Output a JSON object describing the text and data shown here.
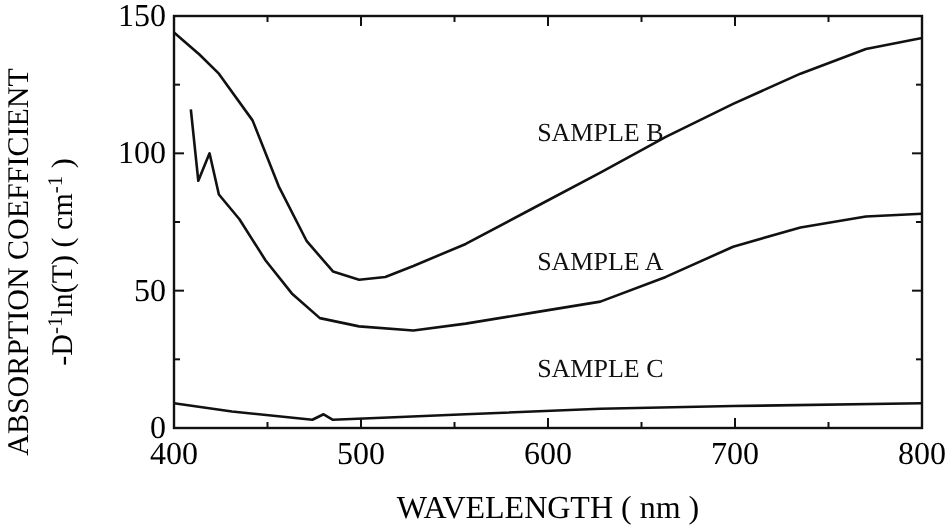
{
  "chart_data": {
    "type": "line",
    "xlabel": "WAVELENGTH ( nm )",
    "ylabel": "ABSORPTION COEFFICIENT\n-D$^{-1}$ln(T) ( cm$^{-1}$ )",
    "xlim": [
      400,
      800
    ],
    "xticks": [
      400,
      {
        "value": 450,
        "label": null
      },
      500,
      {
        "value": 550,
        "label": null
      },
      600,
      {
        "value": 650,
        "label": null
      },
      700,
      {
        "value": 750,
        "label": null
      },
      800
    ],
    "ylim": [
      0,
      150
    ],
    "yticks": [
      0,
      {
        "value": 25,
        "label": null
      },
      50,
      {
        "value": 75,
        "label": null
      },
      100,
      {
        "value": 125,
        "label": null
      },
      150
    ],
    "grid": false,
    "marker": "none",
    "line_style": "solid",
    "series": [
      {
        "name": "SAMPLE B",
        "color": "#111111",
        "x": [
          400,
          413.6,
          424,
          442,
          456,
          471,
          485,
          499,
          513,
          528,
          556,
          592,
          628,
          663,
          699,
          735,
          770,
          800
        ],
        "values": [
          144,
          136,
          129,
          112,
          88,
          68,
          57,
          54,
          55,
          59,
          67,
          80,
          93,
          106,
          118,
          129,
          138,
          142
        ]
      },
      {
        "name": "SAMPLE A",
        "color": "#111111",
        "x": [
          409,
          413,
          419,
          424,
          435,
          449,
          463,
          478,
          499,
          528,
          556,
          592,
          628,
          663,
          699,
          735,
          770,
          800
        ],
        "values": [
          116,
          90,
          100,
          85,
          76,
          61,
          49,
          40,
          37,
          35.5,
          38,
          42,
          46,
          55,
          66,
          73,
          77,
          78
        ]
      },
      {
        "name": "SAMPLE C",
        "color": "#111111",
        "x": [
          400,
          431,
          474,
          480,
          485,
          521,
          556,
          628,
          699,
          800
        ],
        "values": [
          9,
          6,
          3,
          5,
          3,
          4,
          5,
          7,
          8,
          9
        ]
      }
    ]
  }
}
